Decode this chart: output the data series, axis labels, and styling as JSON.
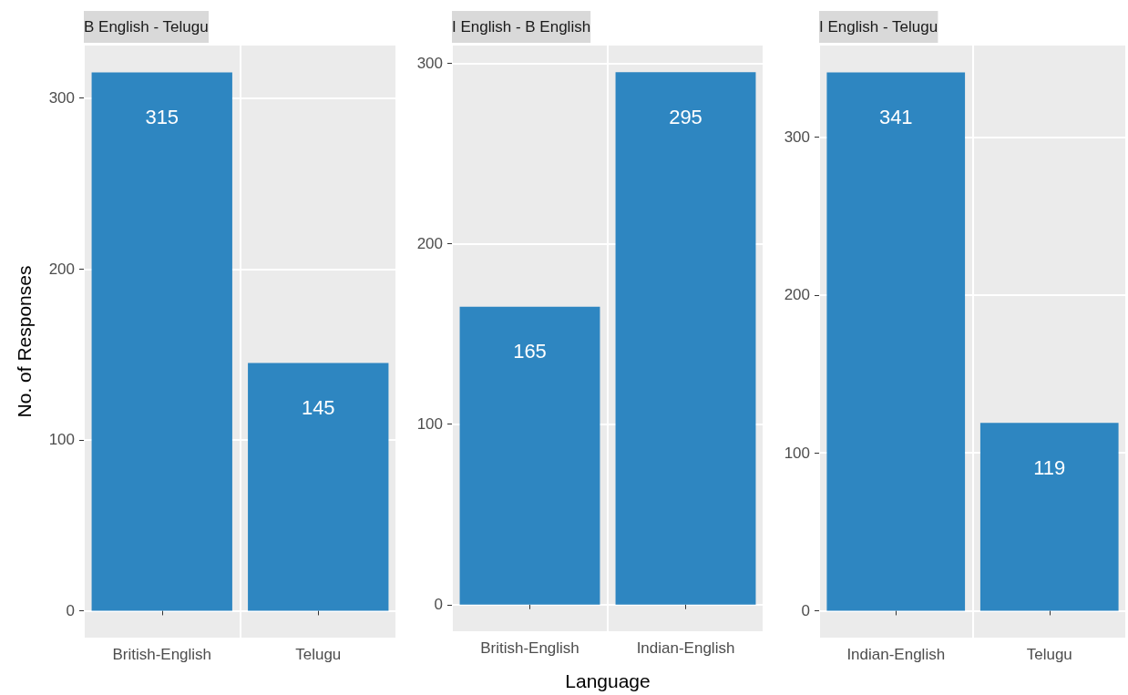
{
  "chart_data": [
    {
      "type": "bar",
      "title": "B English - Telugu",
      "ylabel": "No. of Responses",
      "categories": [
        "British-English",
        "Telugu"
      ],
      "values": [
        315,
        145
      ],
      "color": "#2e86c1",
      "ylim": [
        -15.75,
        330.75
      ],
      "yticks": [
        0,
        100,
        200,
        300
      ],
      "grid": true,
      "data_labels": true
    },
    {
      "type": "bar",
      "title": "I English - B English",
      "xlabel": "Language",
      "categories": [
        "British-English",
        "Indian-English"
      ],
      "values": [
        165,
        295
      ],
      "color": "#2e86c1",
      "ylim": [
        -14.75,
        309.75
      ],
      "yticks": [
        0,
        100,
        200,
        300
      ],
      "grid": true,
      "data_labels": true
    },
    {
      "type": "bar",
      "title": "I English - Telugu",
      "categories": [
        "Indian-English",
        "Telugu"
      ],
      "values": [
        341,
        119
      ],
      "color": "#2e86c1",
      "ylim": [
        -17.05,
        358.05
      ],
      "yticks": [
        0,
        100,
        200,
        300
      ],
      "grid": true,
      "data_labels": true
    }
  ]
}
